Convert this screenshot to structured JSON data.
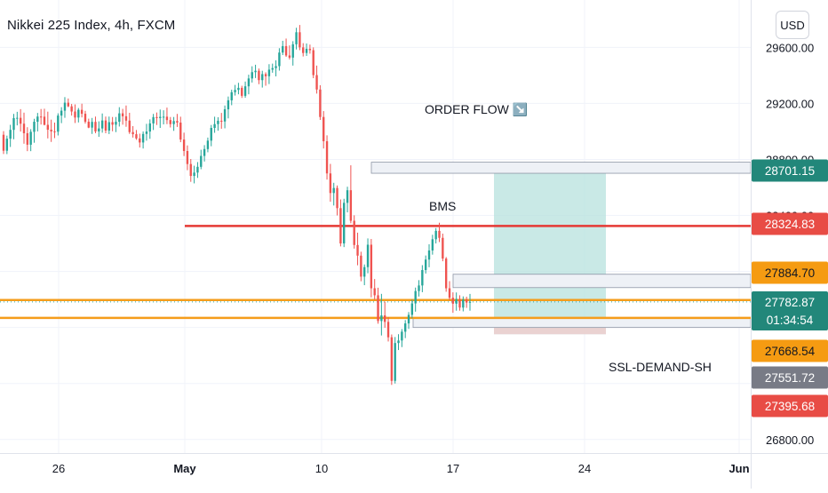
{
  "header": {
    "symbol_title": "Nikkei 225 Index, 4h, FXCM",
    "currency_label": "USD"
  },
  "colors": {
    "up": "#26a69a",
    "down": "#ef5350",
    "bms_line": "#e53935",
    "order_line": "#f59d1b",
    "zone_target": "#b2dfdb",
    "zone_stop": "#f8c8c8",
    "badge_green": "#22877a",
    "badge_red": "#e84c45",
    "badge_orange": "#f59b12",
    "badge_gray": "#787b86"
  },
  "chart_data": {
    "type": "candlestick",
    "title": "Nikkei 225 Index, 4h, FXCM",
    "ylim": [
      26800,
      29900
    ],
    "ytick_values": [
      26800,
      29200,
      29600
    ],
    "ytick_labels": [
      "26800.00",
      "29200.00",
      "29600.00"
    ],
    "partial_ytick_labels": [
      "28800.00",
      "28400.00",
      "28000.00"
    ],
    "xtick_labels": [
      "26",
      "May",
      "10",
      "17",
      "24",
      "Jun"
    ],
    "grid": true,
    "annotations": {
      "order_flow": "ORDER FLOW ↘️",
      "bms": "BMS",
      "ssl": "SSL-DEMAND-SH"
    },
    "levels": {
      "bms": 28324.83,
      "order_upper": 27884.7,
      "order_lower": 27668.54
    },
    "price_badges": [
      {
        "label": "28701.15",
        "value": 28701.15,
        "kind": "green"
      },
      {
        "label": "28324.83",
        "value": 28324.83,
        "kind": "red"
      },
      {
        "label": "27884.70",
        "value": 27884.7,
        "kind": "orange"
      },
      {
        "label": "27782.87",
        "value": 27782.87,
        "kind": "green",
        "sub": "01:34:54"
      },
      {
        "label": "27668.54",
        "value": 27668.54,
        "kind": "orange"
      },
      {
        "label": "27551.72",
        "value": 27551.72,
        "kind": "gray"
      },
      {
        "label": "27395.68",
        "value": 27395.68,
        "kind": "red"
      }
    ],
    "candles": [
      [
        28976,
        29002,
        28839,
        28862
      ],
      [
        28862,
        28970,
        28838,
        28948
      ],
      [
        28948,
        29047,
        28889,
        29011
      ],
      [
        29011,
        29125,
        28944,
        29095
      ],
      [
        29095,
        29140,
        29043,
        29097
      ],
      [
        29097,
        29159,
        28999,
        29055
      ],
      [
        29055,
        29134,
        28912,
        28987
      ],
      [
        28987,
        29030,
        28859,
        28905
      ],
      [
        28905,
        29016,
        28859,
        28997
      ],
      [
        28997,
        29090,
        28919,
        29069
      ],
      [
        29069,
        29132,
        29000,
        29106
      ],
      [
        29106,
        29160,
        29049,
        29105
      ],
      [
        29105,
        29162,
        29043,
        29047
      ],
      [
        29047,
        29141,
        28950,
        29012
      ],
      [
        29012,
        29084,
        28925,
        29000
      ],
      [
        29000,
        29063,
        28952,
        28998
      ],
      [
        28998,
        29129,
        28971,
        29113
      ],
      [
        29113,
        29173,
        29059,
        29148
      ],
      [
        29148,
        29245,
        29097,
        29205
      ],
      [
        29205,
        29235,
        29173,
        29179
      ],
      [
        29179,
        29196,
        29113,
        29142
      ],
      [
        29142,
        29193,
        29060,
        29099
      ],
      [
        29099,
        29167,
        29064,
        29154
      ],
      [
        29154,
        29198,
        29100,
        29126
      ],
      [
        29126,
        29147,
        29056,
        29069
      ],
      [
        29069,
        29091,
        29023,
        29027
      ],
      [
        29027,
        29096,
        28982,
        29068
      ],
      [
        29068,
        29106,
        28987,
        29000
      ],
      [
        29000,
        29072,
        28961,
        29021
      ],
      [
        29021,
        29128,
        28991,
        29078
      ],
      [
        29078,
        29106,
        28987,
        29006
      ],
      [
        29006,
        29106,
        28981,
        29066
      ],
      [
        29066,
        29103,
        29001,
        29048
      ],
      [
        29048,
        29103,
        28995,
        29069
      ],
      [
        29069,
        29173,
        29035,
        29129
      ],
      [
        29129,
        29161,
        29048,
        29108
      ],
      [
        29108,
        29185,
        29033,
        29077
      ],
      [
        29077,
        29133,
        28982,
        28995
      ],
      [
        28995,
        29038,
        28956,
        28980
      ],
      [
        28980,
        29010,
        28940,
        28950
      ],
      [
        28950,
        28984,
        28885,
        28921
      ],
      [
        28921,
        29000,
        28878,
        28982
      ],
      [
        28982,
        29054,
        28934,
        28999
      ],
      [
        28999,
        29086,
        28947,
        29057
      ],
      [
        29057,
        29125,
        29010,
        29102
      ],
      [
        29102,
        29135,
        29046,
        29095
      ],
      [
        29095,
        29156,
        29025,
        29104
      ],
      [
        29104,
        29151,
        29050,
        29105
      ],
      [
        29105,
        29170,
        29052,
        29081
      ],
      [
        29081,
        29103,
        29028,
        29052
      ],
      [
        29052,
        29103,
        29004,
        29074
      ],
      [
        29074,
        29125,
        29032,
        29063
      ],
      [
        29063,
        29105,
        28923,
        28942
      ],
      [
        28942,
        28991,
        28824,
        28860
      ],
      [
        28860,
        28900,
        28723,
        28767
      ],
      [
        28767,
        28803,
        28640,
        28682
      ],
      [
        28682,
        28755,
        28629,
        28706
      ],
      [
        28706,
        28781,
        28668,
        28747
      ],
      [
        28747,
        28869,
        28730,
        28825
      ],
      [
        28825,
        28902,
        28785,
        28874
      ],
      [
        28874,
        28956,
        28851,
        28934
      ],
      [
        28934,
        29046,
        28894,
        29025
      ],
      [
        29025,
        29105,
        28990,
        29052
      ],
      [
        29052,
        29101,
        29005,
        29076
      ],
      [
        29076,
        29132,
        29019,
        29071
      ],
      [
        29071,
        29185,
        29022,
        29158
      ],
      [
        29158,
        29249,
        29093,
        29222
      ],
      [
        29222,
        29298,
        29187,
        29280
      ],
      [
        29280,
        29332,
        29256,
        29296
      ],
      [
        29296,
        29347,
        29265,
        29311
      ],
      [
        29311,
        29326,
        29239,
        29254
      ],
      [
        29254,
        29356,
        29240,
        29322
      ],
      [
        29322,
        29405,
        29265,
        29378
      ],
      [
        29378,
        29465,
        29349,
        29423
      ],
      [
        29423,
        29476,
        29381,
        29433
      ],
      [
        29433,
        29449,
        29337,
        29366
      ],
      [
        29366,
        29433,
        29313,
        29409
      ],
      [
        29409,
        29422,
        29326,
        29394
      ],
      [
        29394,
        29480,
        29338,
        29441
      ],
      [
        29441,
        29484,
        29419,
        29452
      ],
      [
        29452,
        29508,
        29393,
        29466
      ],
      [
        29466,
        29594,
        29434,
        29563
      ],
      [
        29563,
        29647,
        29545,
        29609
      ],
      [
        29609,
        29663,
        29532,
        29542
      ],
      [
        29542,
        29614,
        29514,
        29527
      ],
      [
        29527,
        29644,
        29470,
        29622
      ],
      [
        29622,
        29740,
        29585,
        29708
      ],
      [
        29708,
        29760,
        29580,
        29600
      ],
      [
        29600,
        29630,
        29535,
        29560
      ],
      [
        29560,
        29628,
        29539,
        29590
      ],
      [
        29590,
        29620,
        29555,
        29580
      ],
      [
        29580,
        29600,
        29380,
        29402
      ],
      [
        29402,
        29470,
        29270,
        29299
      ],
      [
        29299,
        29330,
        29082,
        29103
      ],
      [
        29103,
        29145,
        28878,
        28930
      ],
      [
        28930,
        28972,
        28656,
        28700
      ],
      [
        28700,
        28768,
        28498,
        28560
      ],
      [
        28560,
        28633,
        28471,
        28596
      ],
      [
        28596,
        28614,
        28400,
        28452
      ],
      [
        28452,
        28514,
        28179,
        28200
      ],
      [
        28200,
        28519,
        28174,
        28490
      ],
      [
        28490,
        28605,
        28422,
        28580
      ],
      [
        28580,
        28758,
        28344,
        28362
      ],
      [
        28362,
        28401,
        28163,
        28189
      ],
      [
        28189,
        28277,
        28044,
        28113
      ],
      [
        28113,
        28141,
        27930,
        27963
      ],
      [
        27963,
        28050,
        27902,
        28031
      ],
      [
        28031,
        28236,
        27987,
        28191
      ],
      [
        28191,
        28232,
        27815,
        27880
      ],
      [
        27880,
        27946,
        27798,
        27830
      ],
      [
        27830,
        27884,
        27627,
        27646
      ],
      [
        27646,
        27840,
        27543,
        27686
      ],
      [
        27686,
        27784,
        27598,
        27640
      ],
      [
        27640,
        27674,
        27500,
        27530
      ],
      [
        27530,
        27550,
        27190,
        27219
      ],
      [
        27219,
        27532,
        27200,
        27489
      ],
      [
        27489,
        27552,
        27439,
        27507
      ],
      [
        27507,
        27589,
        27460,
        27570
      ],
      [
        27570,
        27653,
        27524,
        27629
      ],
      [
        27629,
        27710,
        27590,
        27690
      ],
      [
        27690,
        27799,
        27665,
        27772
      ],
      [
        27772,
        27885,
        27713,
        27860
      ],
      [
        27860,
        27938,
        27821,
        27900
      ],
      [
        27900,
        28045,
        27852,
        28010
      ],
      [
        28010,
        28114,
        27985,
        28085
      ],
      [
        28085,
        28194,
        28030,
        28150
      ],
      [
        28150,
        28262,
        28120,
        28230
      ],
      [
        28230,
        28310,
        28200,
        28290
      ],
      [
        28290,
        28348,
        28210,
        28240
      ],
      [
        28240,
        28270,
        28073,
        28092
      ],
      [
        28092,
        28103,
        27855,
        27880
      ],
      [
        27880,
        27931,
        27795,
        27812
      ],
      [
        27812,
        27851,
        27705,
        27770
      ],
      [
        27770,
        27850,
        27720,
        27803
      ],
      [
        27803,
        27830,
        27720,
        27742
      ],
      [
        27742,
        27822,
        27715,
        27800
      ],
      [
        27800,
        27820,
        27740,
        27778
      ],
      [
        27778,
        27840,
        27720,
        27783
      ]
    ]
  }
}
